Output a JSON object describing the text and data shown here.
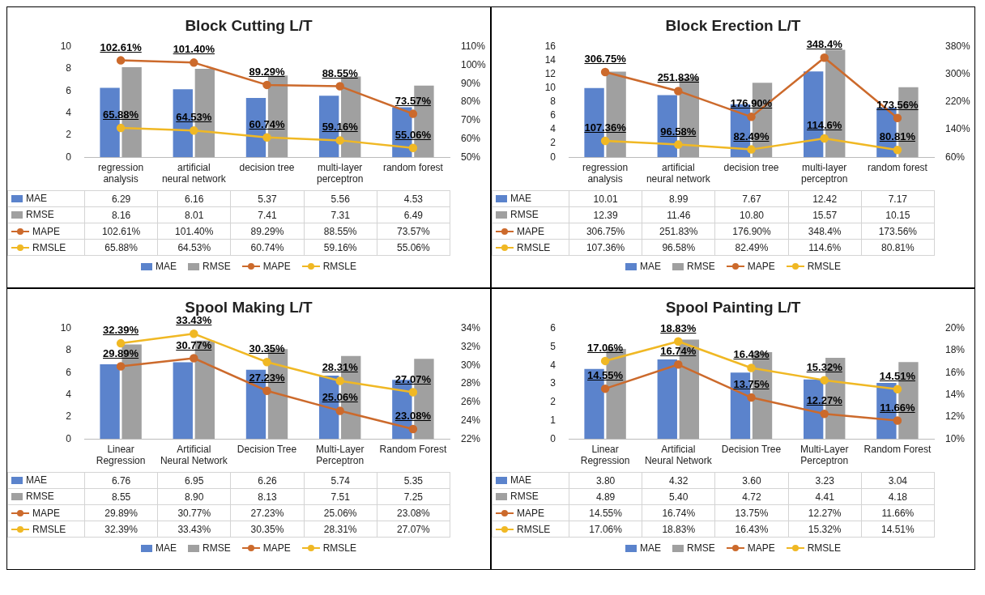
{
  "chart_data": [
    {
      "type": "bar",
      "title": "Block Cutting L/T",
      "categories": [
        "regression analysis",
        "artificial neural network",
        "decision tree",
        "multi-layer perceptron",
        "random forest"
      ],
      "ylim": [
        0,
        10
      ],
      "yticks": [
        0,
        2,
        4,
        6,
        8,
        10
      ],
      "y2lim": [
        50,
        110
      ],
      "y2ticks": [
        {
          "value": 50,
          "label": "50%"
        },
        {
          "value": 60,
          "label": "60%"
        },
        {
          "value": 70,
          "label": "70%"
        },
        {
          "value": 80,
          "label": "80%"
        },
        {
          "value": 90,
          "label": "90%"
        },
        {
          "value": 100,
          "label": "100%"
        },
        {
          "value": 110,
          "label": "110%"
        }
      ],
      "grid": false,
      "legend": "bottom",
      "marker": "circle",
      "series": [
        {
          "name": "MAE",
          "color": "#5b83cc",
          "values": [
            6.29,
            6.16,
            5.37,
            5.56,
            4.53
          ],
          "value_labels": [
            "6.29",
            "6.16",
            "5.37",
            "5.56",
            "4.53"
          ]
        },
        {
          "name": "RMSE",
          "color": "#a0a0a0",
          "values": [
            8.16,
            8.01,
            7.41,
            7.31,
            6.49
          ],
          "value_labels": [
            "8.16",
            "8.01",
            "7.41",
            "7.31",
            "6.49"
          ]
        },
        {
          "name": "MAPE",
          "type": "line",
          "axis": "y2",
          "color": "#cc6a2c",
          "values": [
            102.61,
            101.4,
            89.29,
            88.55,
            73.57
          ],
          "value_labels": [
            "102.61%",
            "101.40%",
            "89.29%",
            "88.55%",
            "73.57%"
          ]
        },
        {
          "name": "RMSLE",
          "type": "line",
          "axis": "y2",
          "color": "#f0b824",
          "values": [
            65.88,
            64.53,
            60.74,
            59.16,
            55.06
          ],
          "value_labels": [
            "65.88%",
            "64.53%",
            "60.74%",
            "59.16%",
            "55.06%"
          ]
        }
      ]
    },
    {
      "type": "bar",
      "title": "Block Erection L/T",
      "categories": [
        "regression analysis",
        "artificial neural network",
        "decision tree",
        "multi-layer perceptron",
        "random forest"
      ],
      "ylim": [
        0,
        16
      ],
      "yticks": [
        0,
        2,
        4,
        6,
        8,
        10,
        12,
        14,
        16
      ],
      "y2lim": [
        60,
        380
      ],
      "y2ticks": [
        {
          "value": 60,
          "label": "60%"
        },
        {
          "value": 140,
          "label": "140%"
        },
        {
          "value": 220,
          "label": "220%"
        },
        {
          "value": 300,
          "label": "300%"
        },
        {
          "value": 380,
          "label": "380%"
        }
      ],
      "grid": false,
      "legend": "bottom",
      "marker": "circle",
      "series": [
        {
          "name": "MAE",
          "color": "#5b83cc",
          "values": [
            10.01,
            8.99,
            7.67,
            12.42,
            7.17
          ],
          "value_labels": [
            "10.01",
            "8.99",
            "7.67",
            "12.42",
            "7.17"
          ]
        },
        {
          "name": "RMSE",
          "color": "#a0a0a0",
          "values": [
            12.39,
            11.46,
            10.8,
            15.57,
            10.15
          ],
          "value_labels": [
            "12.39",
            "11.46",
            "10.80",
            "15.57",
            "10.15"
          ]
        },
        {
          "name": "MAPE",
          "type": "line",
          "axis": "y2",
          "color": "#cc6a2c",
          "values": [
            306.75,
            251.83,
            176.9,
            348.4,
            173.56
          ],
          "value_labels": [
            "306.75%",
            "251.83%",
            "176.90%",
            "348.4%",
            "173.56%"
          ]
        },
        {
          "name": "RMSLE",
          "type": "line",
          "axis": "y2",
          "color": "#f0b824",
          "values": [
            107.36,
            96.58,
            82.49,
            114.6,
            80.81
          ],
          "value_labels": [
            "107.36%",
            "96.58%",
            "82.49%",
            "114.6%",
            "80.81%"
          ]
        }
      ]
    },
    {
      "type": "bar",
      "title": "Spool Making L/T",
      "categories": [
        "Linear Regression",
        "Artificial Neural Network",
        "Decision Tree",
        "Multi-Layer Perceptron",
        "Random Forest"
      ],
      "ylim": [
        0,
        10
      ],
      "yticks": [
        0,
        2,
        4,
        6,
        8,
        10
      ],
      "y2lim": [
        22,
        34
      ],
      "y2ticks": [
        {
          "value": 22,
          "label": "22%"
        },
        {
          "value": 24,
          "label": "24%"
        },
        {
          "value": 26,
          "label": "26%"
        },
        {
          "value": 28,
          "label": "28%"
        },
        {
          "value": 30,
          "label": "30%"
        },
        {
          "value": 32,
          "label": "32%"
        },
        {
          "value": 34,
          "label": "34%"
        }
      ],
      "grid": false,
      "legend": "bottom",
      "marker": "circle",
      "series": [
        {
          "name": "MAE",
          "color": "#5b83cc",
          "values": [
            6.76,
            6.95,
            6.26,
            5.74,
            5.35
          ],
          "value_labels": [
            "6.76",
            "6.95",
            "6.26",
            "5.74",
            "5.35"
          ]
        },
        {
          "name": "RMSE",
          "color": "#a0a0a0",
          "values": [
            8.55,
            8.9,
            8.13,
            7.51,
            7.25
          ],
          "value_labels": [
            "8.55",
            "8.90",
            "8.13",
            "7.51",
            "7.25"
          ]
        },
        {
          "name": "MAPE",
          "type": "line",
          "axis": "y2",
          "color": "#cc6a2c",
          "values": [
            29.89,
            30.77,
            27.23,
            25.06,
            23.08
          ],
          "value_labels": [
            "29.89%",
            "30.77%",
            "27.23%",
            "25.06%",
            "23.08%"
          ]
        },
        {
          "name": "RMSLE",
          "type": "line",
          "axis": "y2",
          "color": "#f0b824",
          "values": [
            32.39,
            33.43,
            30.35,
            28.31,
            27.07
          ],
          "value_labels": [
            "32.39%",
            "33.43%",
            "30.35%",
            "28.31%",
            "27.07%"
          ]
        }
      ]
    },
    {
      "type": "bar",
      "title": "Spool Painting L/T",
      "categories": [
        "Linear Regression",
        "Artificial Neural Network",
        "Decision Tree",
        "Multi-Layer Perceptron",
        "Random Forest"
      ],
      "ylim": [
        0,
        6
      ],
      "yticks": [
        0,
        1,
        2,
        3,
        4,
        5,
        6
      ],
      "y2lim": [
        10,
        20
      ],
      "y2ticks": [
        {
          "value": 10,
          "label": "10%"
        },
        {
          "value": 12,
          "label": "12%"
        },
        {
          "value": 14,
          "label": "14%"
        },
        {
          "value": 16,
          "label": "16%"
        },
        {
          "value": 18,
          "label": "18%"
        },
        {
          "value": 20,
          "label": "20%"
        }
      ],
      "grid": false,
      "legend": "bottom",
      "marker": "circle",
      "series": [
        {
          "name": "MAE",
          "color": "#5b83cc",
          "values": [
            3.8,
            4.32,
            3.6,
            3.23,
            3.04
          ],
          "value_labels": [
            "3.80",
            "4.32",
            "3.60",
            "3.23",
            "3.04"
          ]
        },
        {
          "name": "RMSE",
          "color": "#a0a0a0",
          "values": [
            4.89,
            5.4,
            4.72,
            4.41,
            4.18
          ],
          "value_labels": [
            "4.89",
            "5.40",
            "4.72",
            "4.41",
            "4.18"
          ]
        },
        {
          "name": "MAPE",
          "type": "line",
          "axis": "y2",
          "color": "#cc6a2c",
          "values": [
            14.55,
            16.74,
            13.75,
            12.27,
            11.66
          ],
          "value_labels": [
            "14.55%",
            "16.74%",
            "13.75%",
            "12.27%",
            "11.66%"
          ]
        },
        {
          "name": "RMSLE",
          "type": "line",
          "axis": "y2",
          "color": "#f0b824",
          "values": [
            17.06,
            18.83,
            16.43,
            15.32,
            14.51
          ],
          "value_labels": [
            "17.06%",
            "18.83%",
            "16.43%",
            "15.32%",
            "14.51%"
          ]
        }
      ]
    }
  ]
}
